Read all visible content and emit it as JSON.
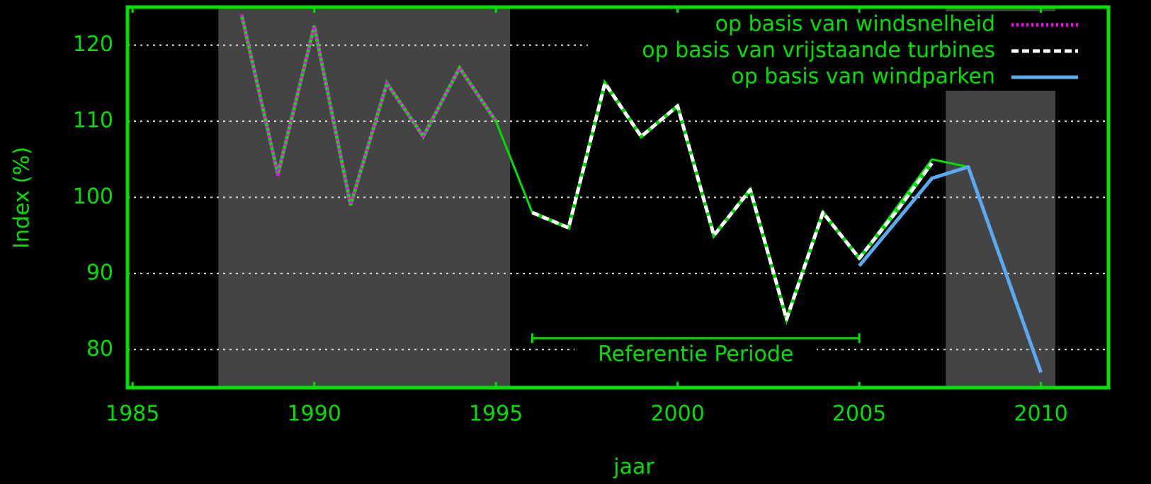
{
  "chart_data": {
    "type": "line",
    "xlabel": "jaar",
    "ylabel": "Index (%)",
    "xlim": [
      1984.86,
      2011.86
    ],
    "ylim": [
      75,
      125
    ],
    "xticks": [
      1985,
      1990,
      1995,
      2000,
      2005,
      2010
    ],
    "yticks": [
      80,
      90,
      100,
      110,
      120
    ],
    "grid": true,
    "legend": "upper right",
    "shaded_ranges": [
      [
        1987.36,
        1995.39
      ],
      [
        2007.38,
        2010.4
      ]
    ],
    "annotation": {
      "text": "Referentie Periode",
      "x_range": [
        1996,
        2005
      ],
      "y": 81.5
    },
    "series": [
      {
        "color": "#00e000",
        "x": [
          1988,
          1989,
          1990,
          1991,
          1992,
          1993,
          1994,
          1995,
          1996,
          1997,
          1998,
          1999,
          2000,
          2001,
          2002,
          2003,
          2004,
          2005,
          2006,
          2007,
          2008
        ],
        "values": [
          124,
          103,
          122.5,
          99,
          115,
          108,
          117,
          110,
          98,
          96,
          115,
          108,
          112,
          95,
          101,
          84,
          98,
          92,
          98.5,
          105,
          104
        ]
      },
      {
        "name": "op basis van windsnelheid",
        "color": "#ff00ff",
        "style": "dotted",
        "x": [
          1988,
          1989,
          1990,
          1991,
          1992,
          1993,
          1994,
          1995
        ],
        "values": [
          124,
          103,
          122.5,
          99,
          115,
          108,
          117,
          110
        ]
      },
      {
        "name": "op basis van vrijstaande turbines",
        "color": "#ffffff",
        "style": "dashed",
        "x": [
          1996,
          1997,
          1998,
          1999,
          2000,
          2001,
          2002,
          2003,
          2004,
          2005,
          2006,
          2007
        ],
        "values": [
          98,
          96,
          115,
          108,
          112,
          95,
          101,
          84,
          98,
          92,
          98,
          104.5
        ]
      },
      {
        "name": "op basis van windparken",
        "color": "#5aaaf0",
        "style": "solid",
        "x": [
          2005,
          2007,
          2008,
          2010
        ],
        "values": [
          91,
          102.5,
          104,
          77
        ]
      }
    ]
  }
}
